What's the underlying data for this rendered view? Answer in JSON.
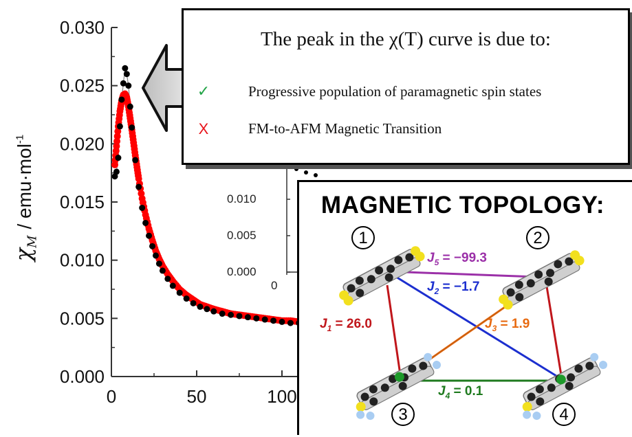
{
  "chart_data": {
    "type": "scatter",
    "ylabel_symbol": "χ",
    "ylabel_subscript": "M",
    "ylabel_unit": "/ emu·mol",
    "ylabel_exponent": "-1",
    "xlim": [
      0,
      120
    ],
    "ylim": [
      0,
      0.03
    ],
    "x_ticks": [
      "0",
      "50",
      "100"
    ],
    "y_ticks": [
      "0.000",
      "0.005",
      "0.010",
      "0.015",
      "0.020",
      "0.025",
      "0.030"
    ],
    "series": [
      {
        "color": "#000000",
        "x": [
          2,
          3,
          4,
          5,
          6,
          7,
          8,
          9,
          10,
          11,
          12,
          14,
          16,
          18,
          20,
          22,
          24,
          26,
          28,
          30,
          33,
          36,
          40,
          44,
          48,
          52,
          56,
          60,
          65,
          70,
          75,
          80,
          85,
          90,
          95,
          100,
          105,
          110,
          115
        ],
        "y": [
          0.0172,
          0.0176,
          0.0188,
          0.0215,
          0.0238,
          0.0252,
          0.0265,
          0.026,
          0.025,
          0.0232,
          0.0214,
          0.0186,
          0.0163,
          0.0145,
          0.0132,
          0.0121,
          0.0112,
          0.0104,
          0.0097,
          0.0091,
          0.0084,
          0.0078,
          0.0072,
          0.0067,
          0.0063,
          0.006,
          0.0058,
          0.0056,
          0.0054,
          0.0053,
          0.0052,
          0.0051,
          0.005,
          0.0049,
          0.0048,
          0.0047,
          0.0046,
          0.0046,
          0.0045
        ]
      },
      {
        "color": "#ff0000",
        "x": [
          2,
          3,
          4,
          5,
          6,
          7,
          8,
          9,
          10,
          11,
          12,
          13,
          14,
          15,
          16,
          18,
          20,
          22,
          24,
          26,
          28,
          30,
          33,
          36,
          40,
          44,
          48,
          52,
          56,
          60,
          65,
          70,
          75,
          80,
          85,
          90,
          95,
          100,
          105,
          110,
          115
        ],
        "y": [
          0.0182,
          0.0198,
          0.0215,
          0.0228,
          0.0237,
          0.0242,
          0.0243,
          0.024,
          0.0232,
          0.0222,
          0.0212,
          0.0201,
          0.019,
          0.018,
          0.017,
          0.0153,
          0.0139,
          0.0127,
          0.0117,
          0.0108,
          0.0101,
          0.0095,
          0.0088,
          0.0082,
          0.0075,
          0.007,
          0.0066,
          0.0062,
          0.006,
          0.0058,
          0.0056,
          0.0054,
          0.0053,
          0.0052,
          0.0051,
          0.005,
          0.0049,
          0.0048,
          0.0048,
          0.0047,
          0.0047
        ]
      }
    ],
    "inset": {
      "y_ticks": [
        "0.000",
        "0.005",
        "0.010"
      ],
      "x_ticks": [
        "0"
      ]
    }
  },
  "callout": {
    "title": "The peak in the χ(T) curve is due to:",
    "reasons": [
      {
        "mark": "✓",
        "color": "#22a447",
        "text": "Progressive population of paramagnetic spin states"
      },
      {
        "mark": "X",
        "color": "#e8141b",
        "text": "FM-to-AFM Magnetic Transition"
      }
    ]
  },
  "topology": {
    "title": "MAGNETIC TOPOLOGY:",
    "sites": [
      "1",
      "2",
      "3",
      "4"
    ],
    "couplings": [
      {
        "name": "J",
        "sub": "5",
        "value": " = −99.3",
        "color": "#9b30a8"
      },
      {
        "name": "J",
        "sub": "2",
        "value": " = −1.7",
        "color": "#1c2fcf"
      },
      {
        "name": "J",
        "sub": "1",
        "value": " = 26.0",
        "color": "#c0161b"
      },
      {
        "name": "J",
        "sub": "3",
        "value": " = 1.9",
        "color": "#e86a10"
      },
      {
        "name": "J",
        "sub": "4",
        "value": " = 0.1",
        "color": "#1e7a1e"
      }
    ]
  }
}
